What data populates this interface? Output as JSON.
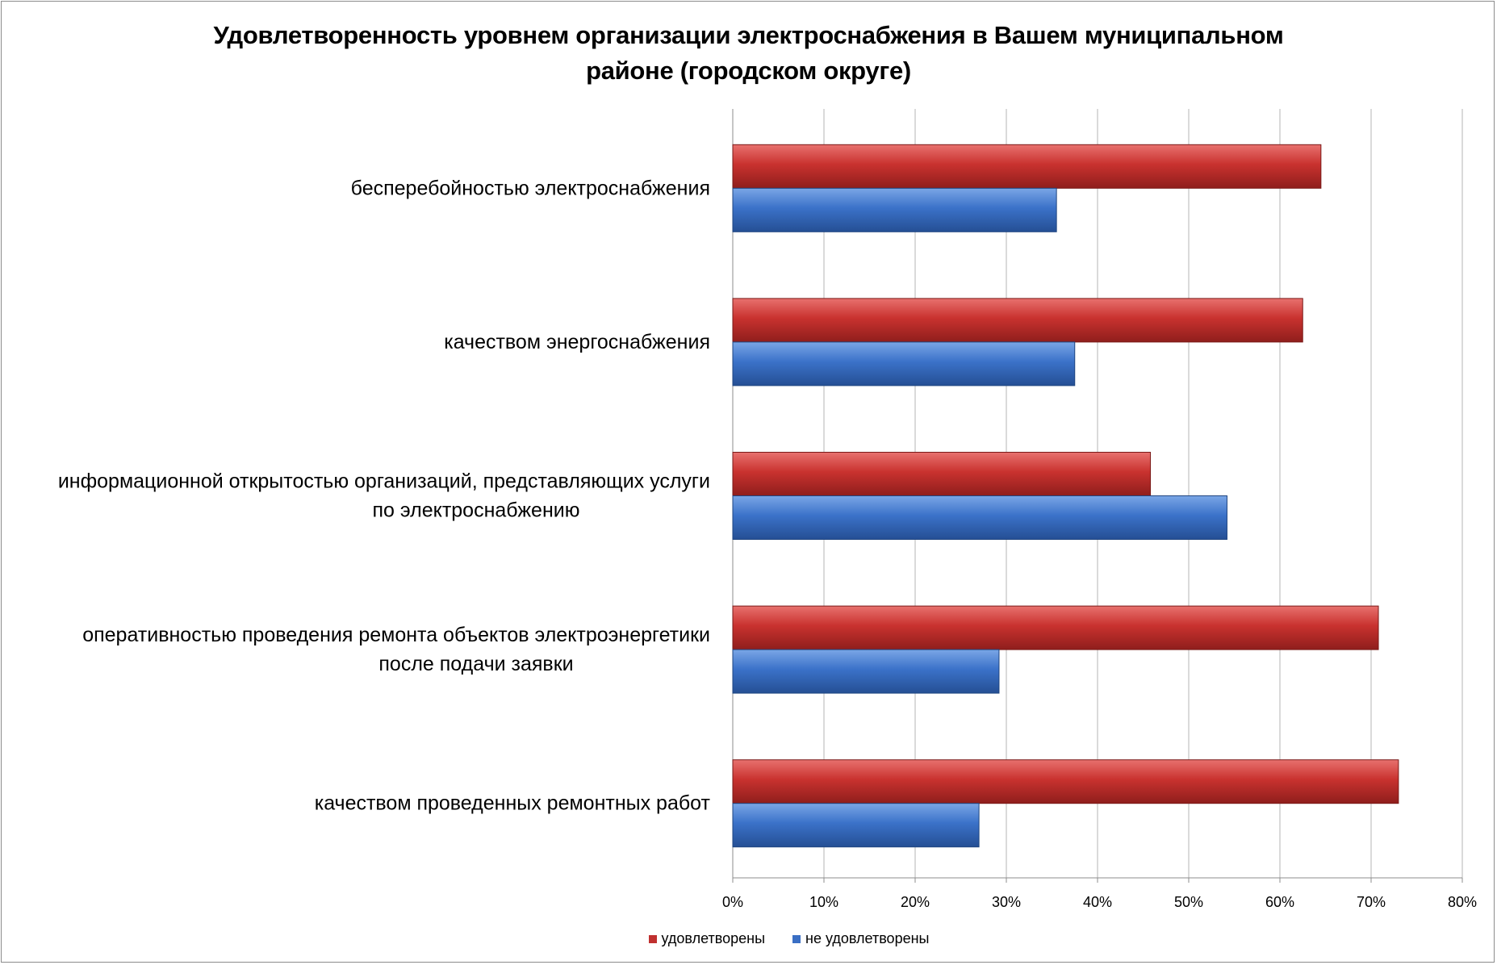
{
  "chart_data": {
    "type": "bar",
    "orientation": "horizontal",
    "title": "Удовлетворенность уровнем организации электроснабжения в Вашем муниципальном районе (городском округе)",
    "title_lines": [
      "Удовлетворенность уровнем организации электроснабжения в Вашем муниципальном",
      "районе (городском округе)"
    ],
    "categories": [
      [
        "бесперебойностью  электроснабжения"
      ],
      [
        "качеством энергоснабжения"
      ],
      [
        "информационной открытостью организаций, представляющих услуги",
        "по электроснабжению"
      ],
      [
        "оперативностью проведения ремонта объектов электроэнергетики",
        "после подачи заявки"
      ],
      [
        "качеством проведенных ремонтных работ"
      ]
    ],
    "series": [
      {
        "name": "удовлетворены",
        "color": "#c0302f",
        "values": [
          0.645,
          0.625,
          0.458,
          0.708,
          0.73
        ]
      },
      {
        "name": "не удовлетворены",
        "color": "#3a6fc4",
        "values": [
          0.355,
          0.375,
          0.542,
          0.292,
          0.27
        ]
      }
    ],
    "xlim": [
      0,
      0.8
    ],
    "xticks": [
      "0%",
      "10%",
      "20%",
      "30%",
      "40%",
      "50%",
      "60%",
      "70%",
      "80%"
    ],
    "grid": true,
    "legend_position": "bottom"
  }
}
